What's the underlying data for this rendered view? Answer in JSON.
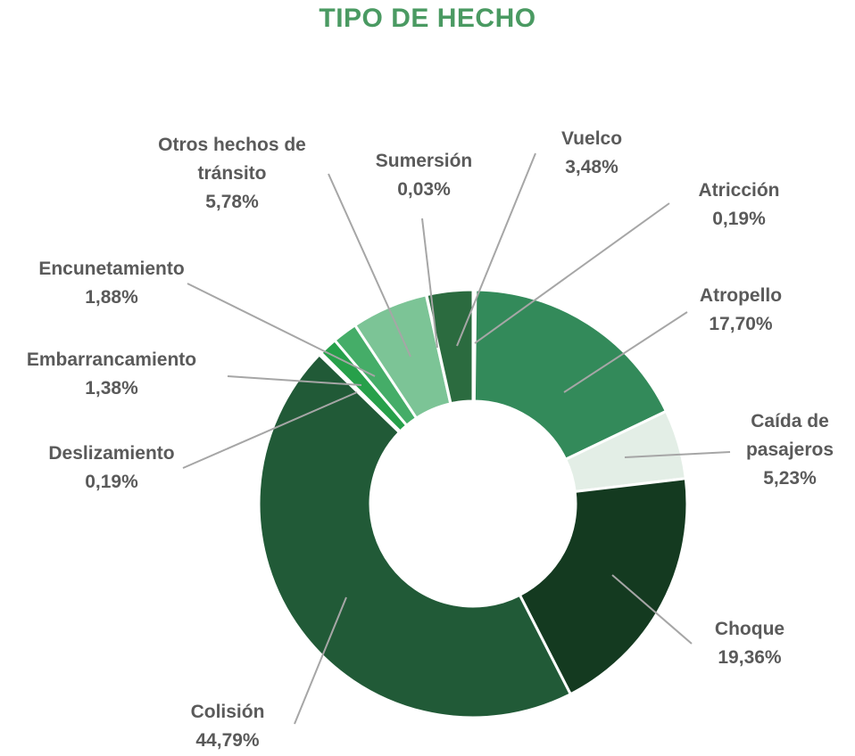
{
  "chart_data": {
    "type": "donut",
    "title": "TIPO DE HECHO",
    "categories": [
      "Atricción",
      "Atropello",
      "Caída de pasajeros",
      "Choque",
      "Colisión",
      "Deslizamiento",
      "Embarrancamiento",
      "Encunetamiento",
      "Otros hechos de tránsito",
      "Sumersión",
      "Vuelco"
    ],
    "values": [
      0.19,
      17.7,
      5.23,
      19.36,
      44.79,
      0.19,
      1.38,
      1.88,
      5.78,
      0.03,
      3.48
    ],
    "value_labels": [
      "0,19%",
      "17,70%",
      "5,23%",
      "19,36%",
      "44,79%",
      "0,19%",
      "1,38%",
      "1,88%",
      "5,78%",
      "0,03%",
      "3,48%"
    ],
    "colors": [
      "#7fb895",
      "#338a5a",
      "#e3eee6",
      "#143a20",
      "#215a37",
      "#c9e3d1",
      "#27a04a",
      "#45ad68",
      "#7cc496",
      "#1b4a2c",
      "#2b6b3f"
    ]
  }
}
